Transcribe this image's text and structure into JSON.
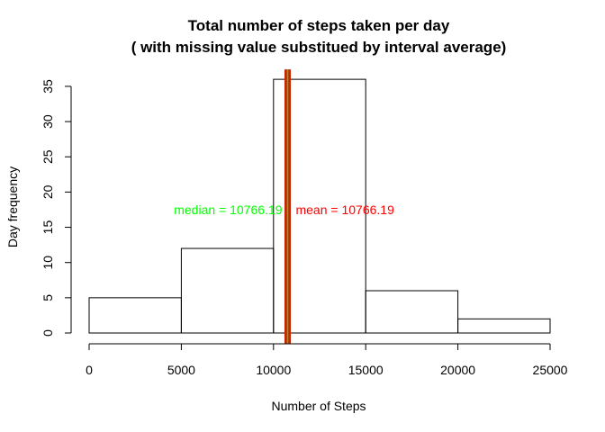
{
  "chart_data": {
    "type": "bar",
    "title_line1": "Total number of steps taken per day",
    "title_line2": "( with missing value substitued by interval average)",
    "xlabel": "Number of Steps",
    "ylabel": "Day frequency",
    "bins": [
      {
        "from": 0,
        "to": 5000,
        "count": 5
      },
      {
        "from": 5000,
        "to": 10000,
        "count": 12
      },
      {
        "from": 10000,
        "to": 15000,
        "count": 36
      },
      {
        "from": 15000,
        "to": 20000,
        "count": 6
      },
      {
        "from": 20000,
        "to": 25000,
        "count": 2
      }
    ],
    "xlim": [
      0,
      25000
    ],
    "ylim": [
      0,
      36
    ],
    "xticks": [
      0,
      5000,
      10000,
      15000,
      20000,
      25000
    ],
    "xtick_labels": [
      "0",
      "5000",
      "10000",
      "15000",
      "20000",
      "25000"
    ],
    "yticks": [
      0,
      5,
      10,
      15,
      20,
      25,
      30,
      35
    ],
    "ytick_labels": [
      "0",
      "5",
      "10",
      "15",
      "20",
      "25",
      "30",
      "35"
    ],
    "grid": false,
    "median": {
      "value": 10766.19,
      "label": "median = 10766.19",
      "color": "#00ff00"
    },
    "mean": {
      "value": 10766.19,
      "label": "mean = 10766.19",
      "color": "#ff0000"
    },
    "annotation_y": 17.5,
    "line_colors": {
      "median": "#32cd32",
      "mean": "#cc2200"
    }
  }
}
